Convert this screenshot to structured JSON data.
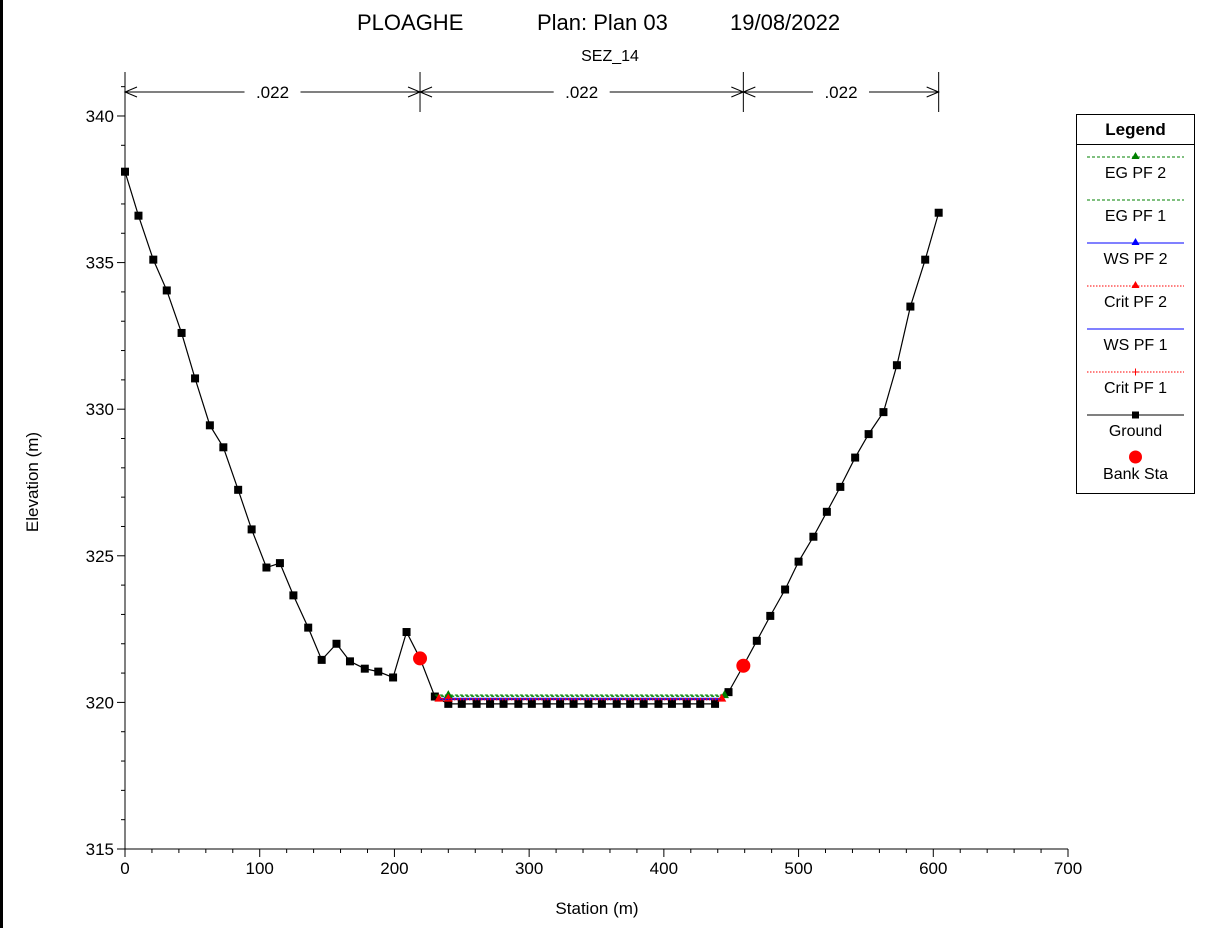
{
  "header": {
    "title_part1": "PLOAGHE",
    "title_part2": "Plan: Plan 03",
    "title_part3": "19/08/2022",
    "subtitle": "SEZ_14"
  },
  "legend": {
    "title": "Legend",
    "items": [
      {
        "label": "EG PF 2",
        "color": "#008000",
        "line": "dashed",
        "marker": "triangle"
      },
      {
        "label": "EG PF 1",
        "color": "#008000",
        "line": "dashed",
        "marker": "none"
      },
      {
        "label": "WS PF 2",
        "color": "#0000ff",
        "line": "solid",
        "marker": "triangle"
      },
      {
        "label": "Crit PF 2",
        "color": "#ff0000",
        "line": "dotted",
        "marker": "triangle"
      },
      {
        "label": "WS PF 1",
        "color": "#0000ff",
        "line": "solid",
        "marker": "none"
      },
      {
        "label": "Crit PF 1",
        "color": "#ff0000",
        "line": "dotted",
        "marker": "plus"
      },
      {
        "label": "Ground",
        "color": "#000000",
        "line": "solid",
        "marker": "square"
      },
      {
        "label": "Bank Sta",
        "color": "#ff0000",
        "line": "none",
        "marker": "circle"
      }
    ]
  },
  "chart_data": {
    "type": "line",
    "title": "PLOAGHE      Plan: Plan 03      19/08/2022",
    "subtitle": "SEZ_14",
    "xlabel": "Station (m)",
    "ylabel": "Elevation (m)",
    "xlim": [
      0,
      700
    ],
    "ylim": [
      315,
      341.5
    ],
    "x_ticks": [
      0,
      100,
      200,
      300,
      400,
      500,
      600,
      700
    ],
    "y_ticks": [
      315,
      320,
      325,
      330,
      335,
      340
    ],
    "x_tick_labels": [
      "0",
      "100",
      "200",
      "300",
      "400",
      "500",
      "600",
      "700"
    ],
    "y_tick_labels": [
      "315",
      "320",
      "325",
      "330",
      "335",
      "340"
    ],
    "grid": false,
    "legend_position": "right",
    "manning": {
      "labels": [
        ".022",
        ".022",
        ".022"
      ],
      "boundaries": [
        0,
        219,
        459,
        604
      ]
    },
    "ground": {
      "color": "#000000",
      "x": [
        0,
        10,
        21,
        31,
        42,
        52,
        63,
        73,
        84,
        94,
        105,
        115,
        125,
        136,
        146,
        157,
        167,
        178,
        188,
        199,
        209,
        219,
        230,
        240,
        250,
        261,
        271,
        281,
        292,
        302,
        313,
        323,
        333,
        344,
        354,
        365,
        375,
        385,
        396,
        406,
        417,
        427,
        438,
        448,
        459,
        469,
        479,
        490,
        500,
        511,
        521,
        531,
        542,
        552,
        563,
        573,
        583,
        594,
        604
      ],
      "y": [
        338.1,
        336.6,
        335.1,
        334.05,
        332.6,
        331.05,
        329.45,
        328.7,
        327.25,
        325.9,
        324.6,
        324.75,
        323.65,
        322.55,
        321.45,
        322.0,
        321.4,
        321.15,
        321.05,
        320.85,
        322.4,
        321.5,
        320.2,
        319.95,
        319.95,
        319.95,
        319.95,
        319.95,
        319.95,
        319.95,
        319.95,
        319.95,
        319.95,
        319.95,
        319.95,
        319.95,
        319.95,
        319.95,
        319.95,
        319.95,
        319.95,
        319.95,
        319.95,
        320.35,
        321.25,
        322.1,
        322.95,
        323.85,
        324.8,
        325.65,
        326.5,
        327.35,
        328.35,
        329.15,
        329.9,
        331.5,
        333.5,
        335.1,
        336.7
      ]
    },
    "bank_stations": {
      "color": "#ff0000",
      "x": [
        219,
        459
      ],
      "y": [
        321.5,
        321.25
      ]
    },
    "water": [
      {
        "name": "EG PF 2",
        "color": "#008000",
        "style": "dashed",
        "x": [
          230,
          445
        ],
        "y": [
          320.25,
          320.25
        ],
        "markers": [
          240,
          445
        ]
      },
      {
        "name": "EG PF 1",
        "color": "#008000",
        "style": "dashed",
        "x": [
          231,
          444
        ],
        "y": [
          320.21,
          320.21
        ],
        "markers": []
      },
      {
        "name": "WS PF 2",
        "color": "#0000ff",
        "style": "solid",
        "x": [
          232,
          443
        ],
        "y": [
          320.14,
          320.14
        ],
        "markers": []
      },
      {
        "name": "Crit PF 2",
        "color": "#ff0000",
        "style": "dotted",
        "x": [
          233,
          443
        ],
        "y": [
          320.13,
          320.13
        ],
        "markers": [
          233,
          240,
          443
        ]
      },
      {
        "name": "WS PF 1",
        "color": "#0000ff",
        "style": "solid",
        "x": [
          233,
          442
        ],
        "y": [
          320.1,
          320.1
        ],
        "markers": []
      },
      {
        "name": "Crit PF 1",
        "color": "#ff0000",
        "style": "dotted",
        "x": [
          233,
          442
        ],
        "y": [
          320.09,
          320.09
        ],
        "markers": []
      }
    ]
  }
}
